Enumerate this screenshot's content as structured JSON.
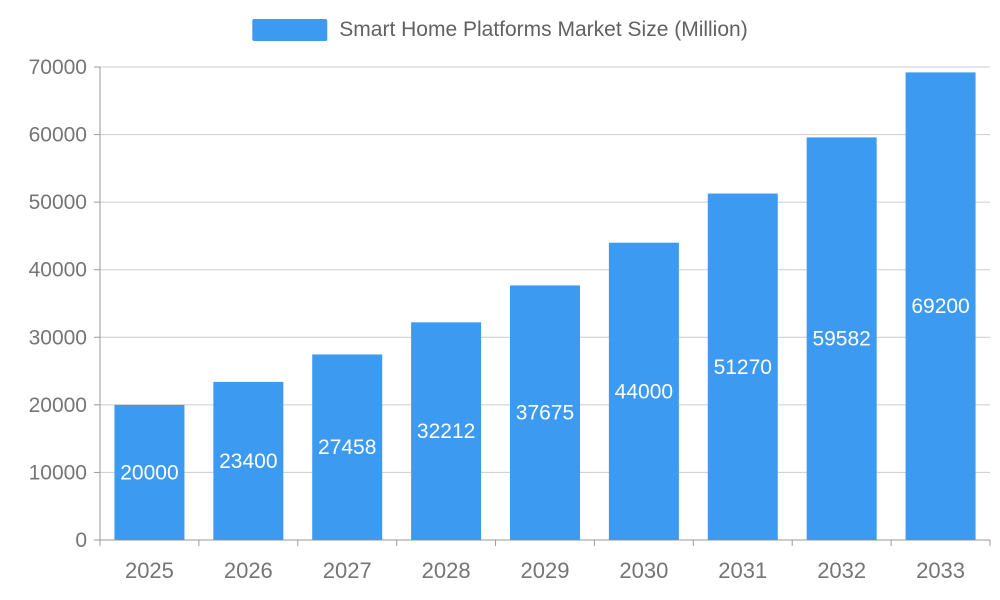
{
  "legend": {
    "label": "Smart Home Platforms Market Size (Million)"
  },
  "chart_data": {
    "type": "bar",
    "title": "Smart Home Platforms Market Size (Million)",
    "categories": [
      "2025",
      "2026",
      "2027",
      "2028",
      "2029",
      "2030",
      "2031",
      "2032",
      "2033"
    ],
    "values": [
      20000,
      23400,
      27458,
      32212,
      37675,
      44000,
      51270,
      59582,
      69200
    ],
    "xlabel": "",
    "ylabel": "",
    "ylim": [
      0,
      70000
    ],
    "yticks": [
      0,
      10000,
      20000,
      30000,
      40000,
      50000,
      60000,
      70000
    ],
    "grid": true,
    "legend_position": "top",
    "bar_color": "#3D9AF1",
    "label_color": "#ffffff",
    "value_labels_inside_bars": true
  },
  "colors": {
    "axis_text": "#757575",
    "grid_line": "#cccccc",
    "axis_line": "#999999",
    "background": "#ffffff"
  }
}
